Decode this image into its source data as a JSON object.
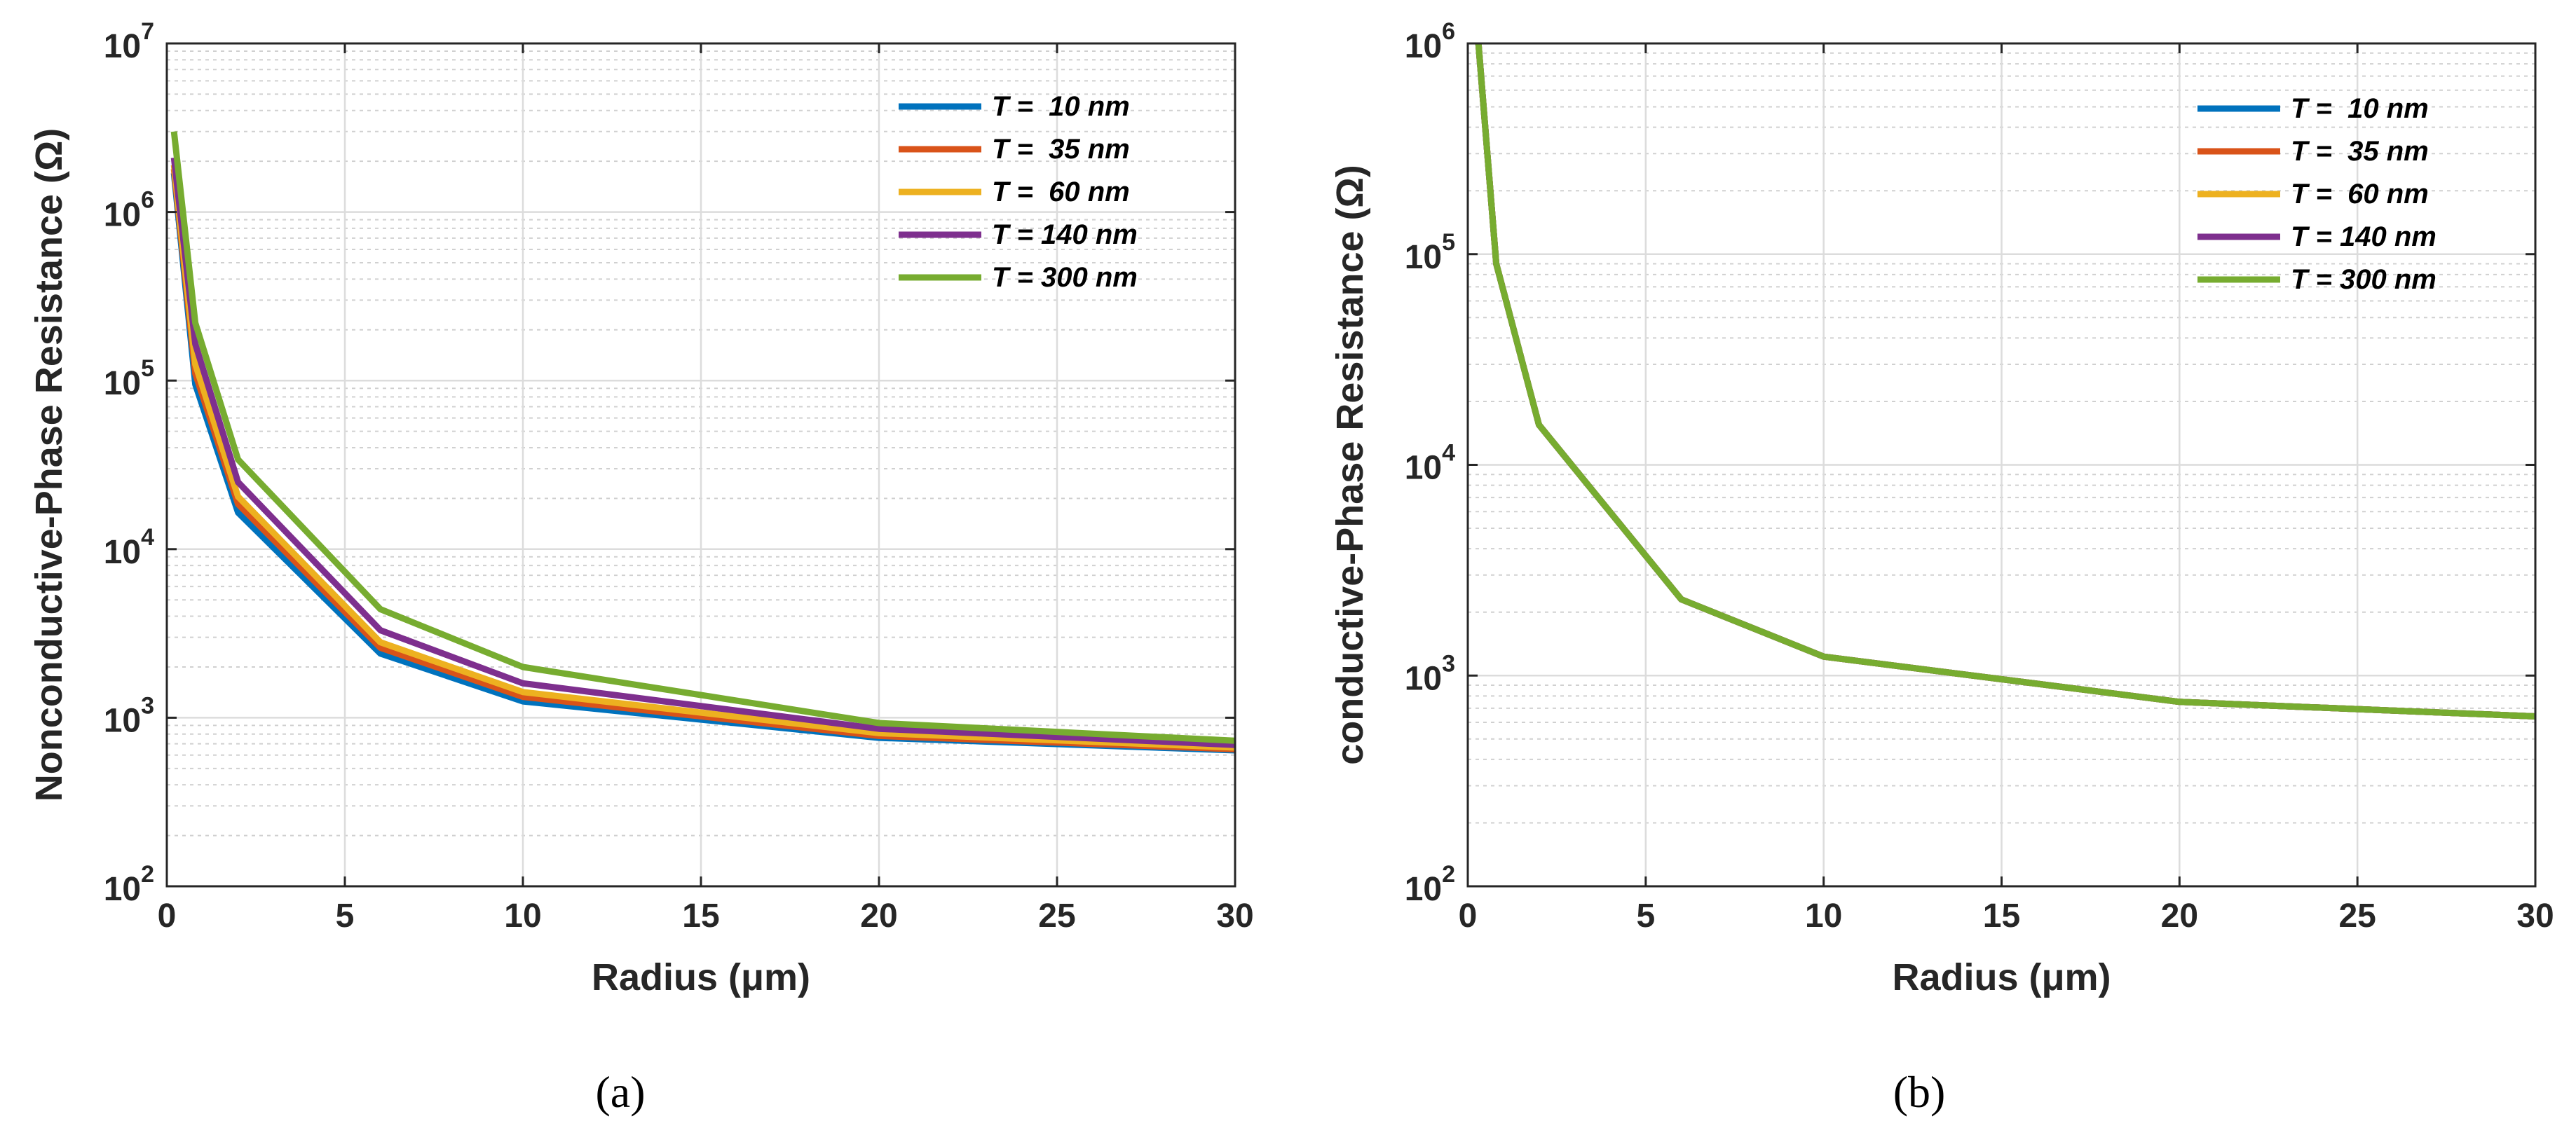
{
  "chart_data": [
    {
      "type": "line",
      "panel_label": "(a)",
      "xlabel": "Radius (μm)",
      "ylabel": "Nonconductive-Phase Resistance (Ω)",
      "xscale": "linear",
      "yscale": "log",
      "xlim": [
        0,
        30
      ],
      "ylim": [
        100,
        10000000
      ],
      "grid": true,
      "minor_grid": true,
      "legend_position": "top-right",
      "xticks": [
        0,
        5,
        10,
        15,
        20,
        25,
        30
      ],
      "xtick_labels": [
        "0",
        "5",
        "10",
        "15",
        "20",
        "25",
        "30"
      ],
      "yticks": [
        {
          "value": 100,
          "base": "10",
          "exp": "2"
        },
        {
          "value": 1000,
          "base": "10",
          "exp": "3"
        },
        {
          "value": 10000,
          "base": "10",
          "exp": "4"
        },
        {
          "value": 100000,
          "base": "10",
          "exp": "5"
        },
        {
          "value": 1000000,
          "base": "10",
          "exp": "6"
        },
        {
          "value": 10000000,
          "base": "10",
          "exp": "7"
        }
      ],
      "x": [
        0.2,
        0.8,
        2,
        6,
        10,
        20,
        30
      ],
      "series": [
        {
          "name": "T =  10 nm",
          "color": "#0072BD",
          "values": [
            1700000,
            95000,
            16500,
            2400,
            1250,
            760,
            640
          ]
        },
        {
          "name": "T =  35 nm",
          "color": "#D95319",
          "values": [
            1800000,
            110000,
            18500,
            2600,
            1330,
            780,
            650
          ]
        },
        {
          "name": "T =  60 nm",
          "color": "#EDB120",
          "values": [
            1900000,
            125000,
            20500,
            2800,
            1420,
            810,
            665
          ]
        },
        {
          "name": "T = 140 nm",
          "color": "#7E2F8E",
          "values": [
            2100000,
            165000,
            25000,
            3300,
            1600,
            860,
            690
          ]
        },
        {
          "name": "T = 300 nm",
          "color": "#77AC30",
          "values": [
            3000000,
            220000,
            34000,
            4400,
            2000,
            930,
            730
          ]
        }
      ]
    },
    {
      "type": "line",
      "panel_label": "(b)",
      "xlabel": "Radius (μm)",
      "ylabel": "conductive-Phase Resistance (Ω)",
      "xscale": "linear",
      "yscale": "log",
      "xlim": [
        0,
        30
      ],
      "ylim": [
        100,
        1000000
      ],
      "grid": true,
      "minor_grid": true,
      "legend_position": "top-right",
      "xticks": [
        0,
        5,
        10,
        15,
        20,
        25,
        30
      ],
      "xtick_labels": [
        "0",
        "5",
        "10",
        "15",
        "20",
        "25",
        "30"
      ],
      "yticks": [
        {
          "value": 100,
          "base": "10",
          "exp": "2"
        },
        {
          "value": 1000,
          "base": "10",
          "exp": "3"
        },
        {
          "value": 10000,
          "base": "10",
          "exp": "4"
        },
        {
          "value": 100000,
          "base": "10",
          "exp": "5"
        },
        {
          "value": 1000000,
          "base": "10",
          "exp": "6"
        }
      ],
      "x": [
        0.3,
        0.8,
        2,
        6,
        10,
        20,
        30
      ],
      "series": [
        {
          "name": "T =  10 nm",
          "color": "#0072BD",
          "values": [
            1000000,
            90000,
            15500,
            2300,
            1230,
            750,
            640
          ]
        },
        {
          "name": "T =  35 nm",
          "color": "#D95319",
          "values": [
            1000000,
            90000,
            15500,
            2300,
            1230,
            750,
            640
          ]
        },
        {
          "name": "T =  60 nm",
          "color": "#EDB120",
          "values": [
            1000000,
            90000,
            15500,
            2300,
            1230,
            750,
            640
          ]
        },
        {
          "name": "T = 140 nm",
          "color": "#7E2F8E",
          "values": [
            1000000,
            90000,
            15500,
            2300,
            1230,
            750,
            640
          ]
        },
        {
          "name": "T = 300 nm",
          "color": "#77AC30",
          "values": [
            1000000,
            90000,
            15500,
            2300,
            1230,
            750,
            640
          ]
        }
      ]
    }
  ]
}
